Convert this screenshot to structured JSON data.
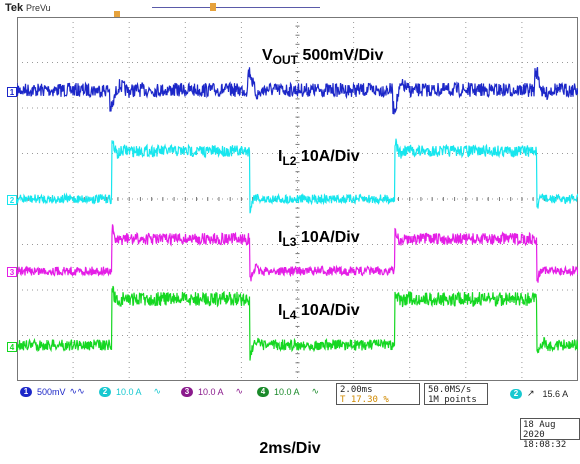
{
  "header": {
    "brand": "Tek",
    "mode": "PreVu"
  },
  "channels": [
    {
      "id": "1",
      "color": "#1c27c8",
      "scale": "500mV"
    },
    {
      "id": "2",
      "color": "#17e6ee",
      "scale": "10.0 A"
    },
    {
      "id": "3",
      "color": "#e41ee6",
      "scale": "10.0 A"
    },
    {
      "id": "4",
      "color": "#15d721",
      "scale": "10.0 A"
    }
  ],
  "annotations": {
    "vout": {
      "main": "V",
      "sub": "OUT",
      "rest": " 500mV/Div"
    },
    "il2": {
      "main": "I",
      "sub": "L2",
      "rest": " 10A/Div"
    },
    "il3": {
      "main": "I",
      "sub": "L3",
      "rest": " 10A/Div"
    },
    "il4": {
      "main": "I",
      "sub": "L4",
      "rest": " 10A/Div"
    }
  },
  "horizontal": {
    "scale": "2.00ms",
    "position": "17.30 %"
  },
  "acquisition": {
    "rate": "50.0MS/s",
    "points": "1M points"
  },
  "trigger": {
    "source": "2",
    "level": "15.6 A"
  },
  "date": {
    "day": "18 Aug 2020",
    "time": "18:08:32"
  },
  "timebase_label": "2ms/Div"
}
